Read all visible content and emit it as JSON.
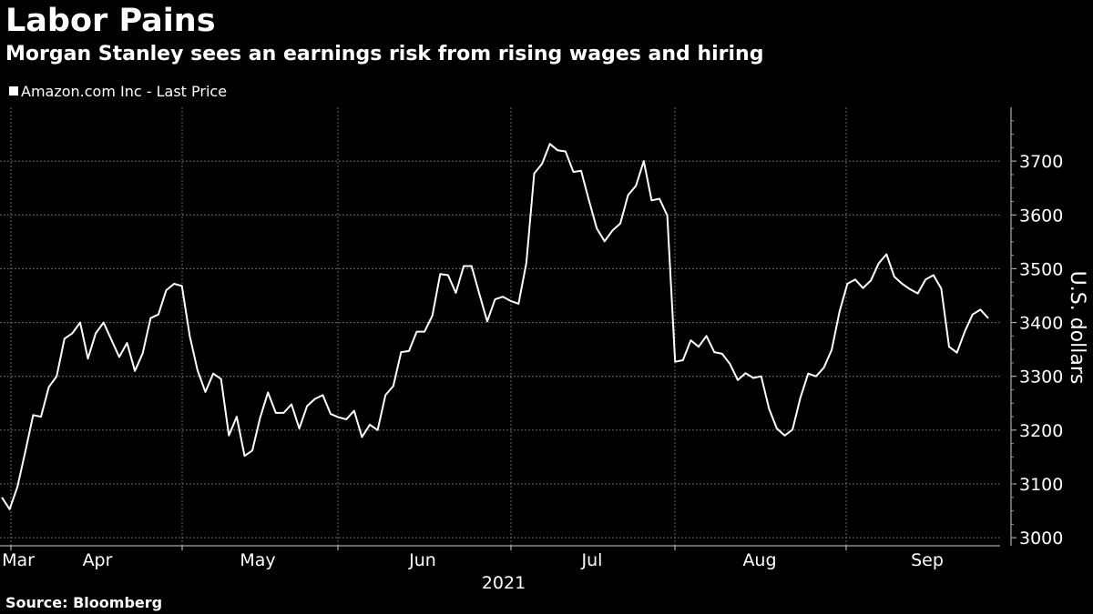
{
  "header": {
    "title": "Labor Pains",
    "subtitle": "Morgan Stanley sees an earnings risk from rising wages and hiring"
  },
  "legend": {
    "label": "Amazon.com Inc - Last Price"
  },
  "footer": {
    "source": "Source: Bloomberg"
  },
  "colors": {
    "background": "#000000",
    "line": "#ffffff",
    "grid": "#6a6a6a",
    "text": "#ffffff"
  },
  "chart_data": {
    "type": "line",
    "title": "Labor Pains",
    "subtitle": "Morgan Stanley sees an earnings risk from rising wages and hiring",
    "ylabel": "U.S. dollars",
    "year_label": "2021",
    "ylim": [
      2985,
      3800
    ],
    "yticks": [
      3000,
      3100,
      3200,
      3300,
      3400,
      3500,
      3600,
      3700
    ],
    "month_labels": [
      "Mar",
      "Apr",
      "May",
      "Jun",
      "Jul",
      "Aug",
      "Sep"
    ],
    "grid": true,
    "legend_position": "top-left",
    "series": [
      {
        "name": "Amazon.com Inc - Last Price",
        "values": [
          3075,
          3053,
          3095,
          3160,
          3228,
          3225,
          3280,
          3300,
          3370,
          3380,
          3400,
          3333,
          3380,
          3400,
          3368,
          3336,
          3362,
          3310,
          3343,
          3408,
          3415,
          3460,
          3472,
          3468,
          3375,
          3311,
          3271,
          3305,
          3295,
          3190,
          3225,
          3152,
          3162,
          3223,
          3270,
          3232,
          3232,
          3248,
          3203,
          3245,
          3258,
          3265,
          3230,
          3224,
          3220,
          3236,
          3187,
          3210,
          3200,
          3265,
          3282,
          3345,
          3347,
          3383,
          3383,
          3413,
          3490,
          3488,
          3455,
          3505,
          3505,
          3453,
          3402,
          3443,
          3448,
          3440,
          3435,
          3511,
          3677,
          3695,
          3732,
          3720,
          3718,
          3680,
          3682,
          3627,
          3575,
          3551,
          3571,
          3584,
          3637,
          3654,
          3700,
          3627,
          3630,
          3599,
          3327,
          3330,
          3367,
          3355,
          3375,
          3345,
          3342,
          3323,
          3293,
          3306,
          3297,
          3300,
          3240,
          3203,
          3190,
          3201,
          3260,
          3305,
          3300,
          3316,
          3349,
          3420,
          3472,
          3480,
          3464,
          3478,
          3510,
          3527,
          3485,
          3472,
          3462,
          3454,
          3480,
          3488,
          3463,
          3355,
          3344,
          3383,
          3415,
          3424,
          3408
        ]
      }
    ]
  }
}
